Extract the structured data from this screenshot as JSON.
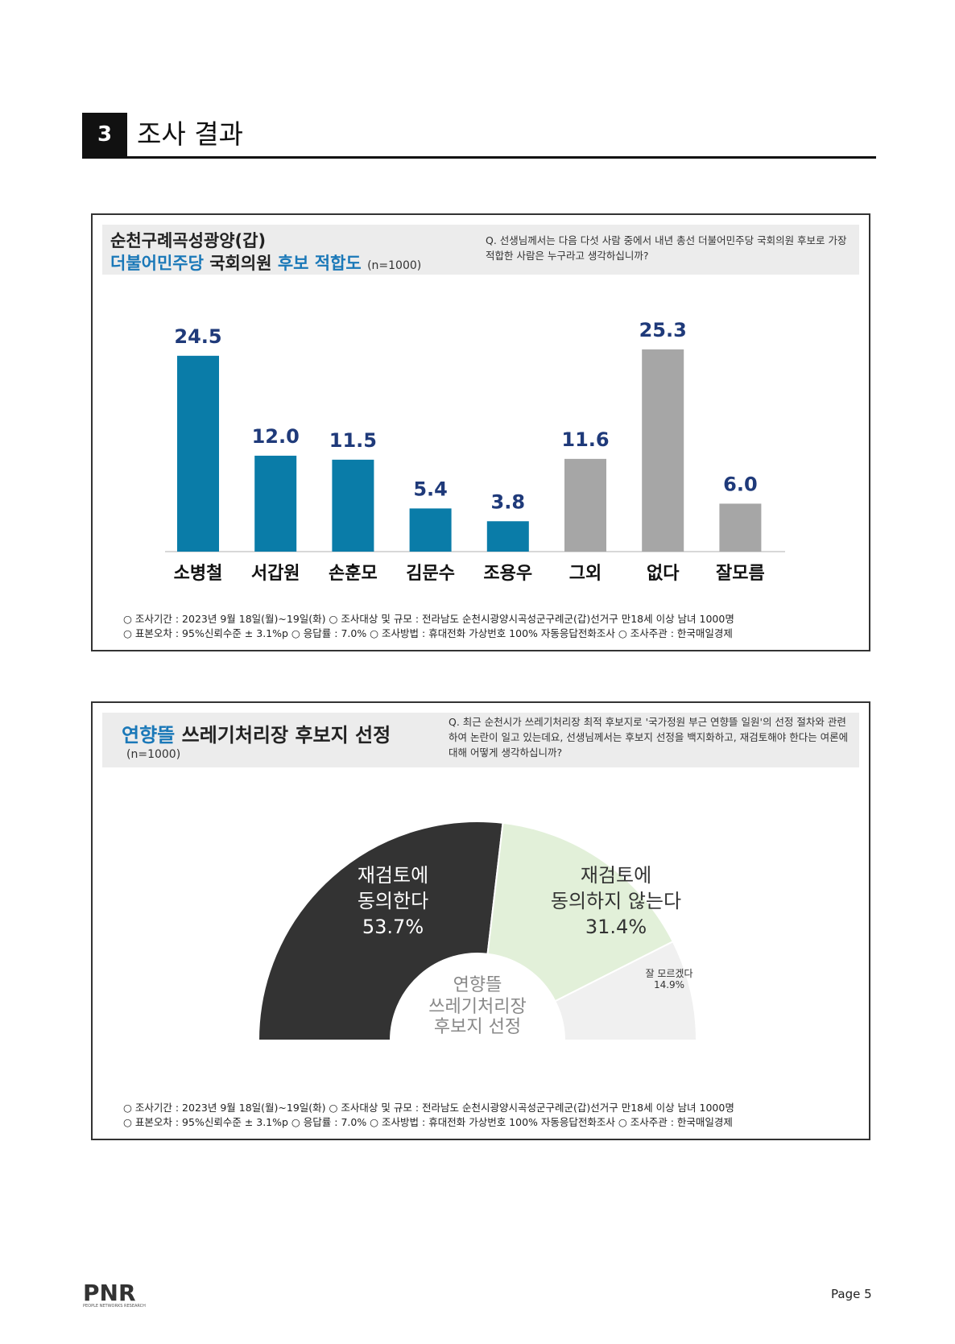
{
  "section": {
    "number": "3",
    "title": "조사 결과"
  },
  "panel1": {
    "title_line1": "순천구례곡성광양(갑)",
    "title_party": "더불어민주당",
    "title_middle": "국회의원",
    "title_end": "후보 적합도",
    "sample": "(n=1000)",
    "question": "Q. 선생님께서는 다음 다섯 사람 중에서 내년 총선 더불어민주당 국회의원 후보로 가장 적합한 사람은 누구라고 생각하십니까?",
    "footnote_line1": "○ 조사기간 : 2023년 9월 18일(월)~19일(화)   ○ 조사대상 및 규모 : 전라남도 순천시광양시곡성군구례군(갑)선거구 만18세 이상 남녀 1000명",
    "footnote_line2": "○ 표본오차 : 95%신뢰수준 ± 3.1%p   ○ 응답률 : 7.0%   ○ 조사방법 : 휴대전화 가상번호 100% 자동응답전화조사   ○ 조사주관 : 한국매일경제"
  },
  "panel2": {
    "title_blue": "연향뜰",
    "title_rest": "쓰레기처리장 후보지  선정",
    "sample": "(n=1000)",
    "question": "Q. 최근 순천시가 쓰레기처리장 최적 후보지로 '국가정원 부근 연향뜰 일원'의 선정 절차와 관련하여 논란이 일고 있는데요, 선생님께서는 후보지 선정을 백지화하고, 재검토해야 한다는 여론에 대해 어떻게 생각하십니까?",
    "center_line1": "연향뜰",
    "center_line2": "쓰레기처리장",
    "center_line3": "후보지 선정",
    "footnote_line1": "○ 조사기간 : 2023년 9월 18일(월)~19일(화)   ○ 조사대상 및 규모 : 전라남도 순천시광양시곡성군구례군(갑)선거구 만18세 이상 남녀 1000명",
    "footnote_line2": "○ 표본오차 : 95%신뢰수준 ± 3.1%p   ○ 응답률 : 7.0%   ○ 조사방법 : 휴대전화 가상번호 100% 자동응답전화조사   ○ 조사주관 : 한국매일경제"
  },
  "footer": {
    "logo": "PNR",
    "logo_sub": "PEOPLE NETWORKS RESEARCH",
    "page": "Page 5"
  },
  "chart_data": [
    {
      "type": "bar",
      "categories": [
        "소병철",
        "서갑원",
        "손훈모",
        "김문수",
        "조용우",
        "그외",
        "없다",
        "잘모름"
      ],
      "values": [
        24.5,
        12.0,
        11.5,
        5.4,
        3.8,
        11.6,
        25.3,
        6.0
      ],
      "value_labels": [
        "24.5",
        "12.0",
        "11.5",
        "5.4",
        "3.8",
        "11.6",
        "25.3",
        "6.0"
      ],
      "colors": [
        "#0a7ca8",
        "#0a7ca8",
        "#0a7ca8",
        "#0a7ca8",
        "#0a7ca8",
        "#a6a6a6",
        "#a6a6a6",
        "#a6a6a6"
      ],
      "label_color": "#1f3a7a",
      "ylim": [
        0,
        27
      ]
    },
    {
      "type": "pie",
      "style": "semi-donut",
      "slices": [
        {
          "line1": "재검토에",
          "line2": "동의한다",
          "label": "53.7%",
          "value": 53.7,
          "color": "#333333"
        },
        {
          "line1": "재검토에",
          "line2": "동의하지 않는다",
          "label": "31.4%",
          "value": 31.4,
          "color": "#e2f0d9"
        },
        {
          "line1": "잘 모르겠다",
          "line2": "",
          "label": "14.9%",
          "value": 14.9,
          "color": "#f0f0f0"
        }
      ]
    }
  ]
}
